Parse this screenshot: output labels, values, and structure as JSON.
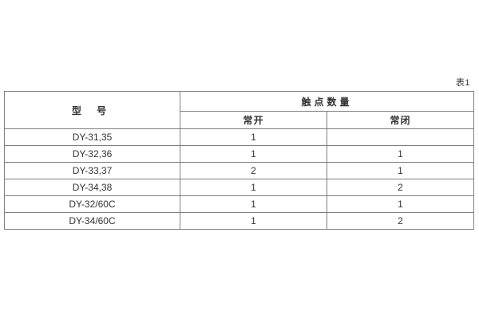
{
  "page": {
    "caption": "表1"
  },
  "table": {
    "header": {
      "model_label": "型 号",
      "contacts_group_label": "触点数量",
      "normally_open_label": "常开",
      "normally_closed_label": "常闭"
    },
    "rows": [
      {
        "model": "DY-31,35",
        "normally_open": "1",
        "normally_closed": ""
      },
      {
        "model": "DY-32,36",
        "normally_open": "1",
        "normally_closed": "1"
      },
      {
        "model": "DY-33,37",
        "normally_open": "2",
        "normally_closed": "1"
      },
      {
        "model": "DY-34,38",
        "normally_open": "1",
        "normally_closed": "2"
      },
      {
        "model": "DY-32/60C",
        "normally_open": "1",
        "normally_closed": "1"
      },
      {
        "model": "DY-34/60C",
        "normally_open": "1",
        "normally_closed": "2"
      }
    ]
  }
}
